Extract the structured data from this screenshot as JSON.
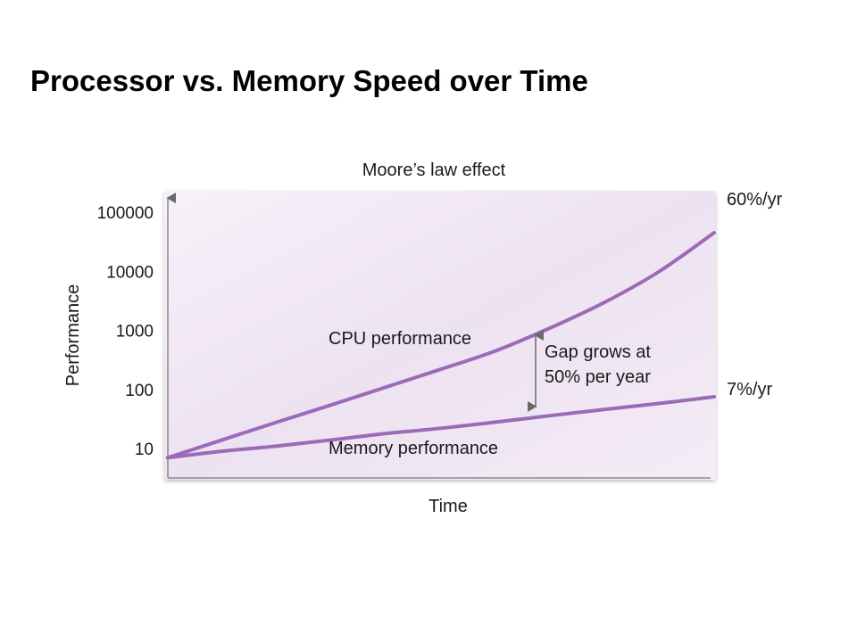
{
  "slide": {
    "title": "Processor vs. Memory Speed over Time"
  },
  "chart_data": {
    "type": "line",
    "title": "Moore’s law effect",
    "xlabel": "Time",
    "ylabel": "Performance",
    "yscale": "log",
    "ylim": [
      5,
      150000
    ],
    "yticks": [
      10,
      100,
      1000,
      10000,
      100000
    ],
    "ytick_labels": [
      "10",
      "100",
      "1000",
      "10000",
      "100000"
    ],
    "x": [
      0,
      1,
      2,
      3,
      4,
      5,
      6,
      7,
      8,
      9,
      10
    ],
    "grid": false,
    "series": [
      {
        "name": "CPU performance",
        "rate_label": "60%/yr",
        "values": [
          7,
          14,
          28,
          55,
          110,
          220,
          450,
          1100,
          3000,
          10000,
          45000
        ]
      },
      {
        "name": "Memory performance",
        "rate_label": "7%/yr",
        "values": [
          7,
          9,
          11,
          14,
          18,
          22,
          28,
          36,
          46,
          58,
          75
        ]
      }
    ],
    "annotations": [
      {
        "text_line1": "Gap grows at",
        "text_line2": "50% per year"
      }
    ],
    "colors": {
      "line": "#9b6ab8",
      "background_top": "#f5eef8",
      "background_bottom": "#e9dcef"
    }
  }
}
